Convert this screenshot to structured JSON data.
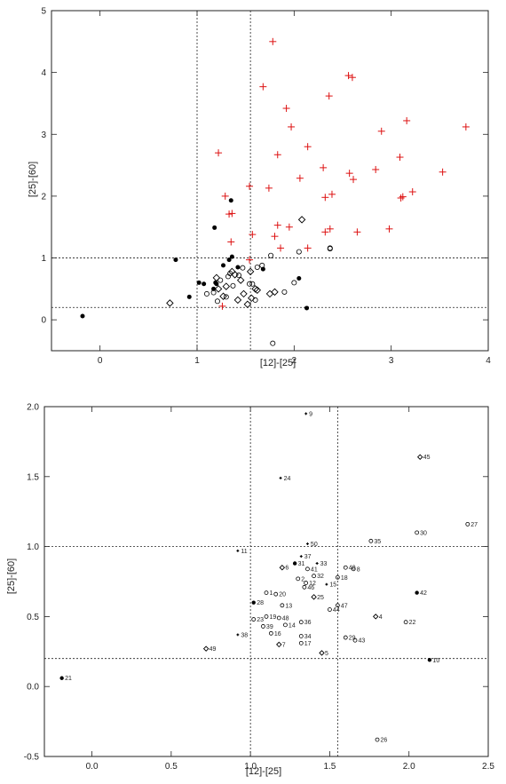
{
  "chart_data": [
    {
      "type": "scatter",
      "title": "",
      "xlabel": "[12]-[25]",
      "ylabel": "[25]-[60]",
      "xlim": [
        -0.5,
        4
      ],
      "ylim": [
        -0.5,
        5
      ],
      "x_ticks": [
        "0",
        "1",
        "2",
        "3",
        "4"
      ],
      "x_tick_values": [
        0,
        1,
        2,
        3,
        4
      ],
      "y_ticks": [
        "0",
        "1",
        "2",
        "3",
        "4",
        "5"
      ],
      "y_tick_values": [
        0,
        1,
        2,
        3,
        4,
        5
      ],
      "ref_lines": {
        "x": [
          1.0,
          1.55
        ],
        "y": [
          0.2,
          1.0
        ]
      },
      "colors": {
        "red": "#dd1111",
        "black": "#000000"
      },
      "series": [
        {
          "marker": "plus-red",
          "points": [
            [
              1.78,
              4.5
            ],
            [
              2.56,
              3.95
            ],
            [
              2.6,
              3.92
            ],
            [
              1.68,
              3.77
            ],
            [
              2.36,
              3.62
            ],
            [
              1.92,
              3.42
            ],
            [
              1.97,
              3.12
            ],
            [
              3.16,
              3.22
            ],
            [
              3.77,
              3.12
            ],
            [
              2.9,
              3.05
            ],
            [
              1.22,
              2.7
            ],
            [
              1.83,
              2.67
            ],
            [
              3.09,
              2.63
            ],
            [
              2.14,
              2.8
            ],
            [
              2.3,
              2.46
            ],
            [
              2.84,
              2.43
            ],
            [
              3.53,
              2.39
            ],
            [
              2.57,
              2.37
            ],
            [
              2.61,
              2.27
            ],
            [
              2.06,
              2.29
            ],
            [
              1.54,
              2.16
            ],
            [
              1.74,
              2.13
            ],
            [
              3.22,
              2.07
            ],
            [
              3.12,
              1.99
            ],
            [
              3.1,
              1.97
            ],
            [
              2.39,
              2.03
            ],
            [
              2.32,
              1.98
            ],
            [
              1.29,
              2.0
            ],
            [
              1.36,
              1.72
            ],
            [
              1.33,
              1.71
            ],
            [
              1.83,
              1.53
            ],
            [
              1.95,
              1.5
            ],
            [
              2.37,
              1.47
            ],
            [
              2.98,
              1.47
            ],
            [
              1.57,
              1.38
            ],
            [
              1.8,
              1.35
            ],
            [
              2.65,
              1.42
            ],
            [
              2.32,
              1.42
            ],
            [
              1.35,
              1.26
            ],
            [
              1.86,
              1.16
            ],
            [
              2.14,
              1.16
            ],
            [
              1.54,
              0.97
            ],
            [
              1.26,
              0.22
            ]
          ]
        },
        {
          "marker": "dot-black",
          "points": [
            [
              -0.18,
              0.06
            ],
            [
              0.78,
              0.97
            ],
            [
              0.92,
              0.37
            ],
            [
              1.02,
              0.6
            ],
            [
              1.07,
              0.58
            ],
            [
              1.17,
              0.5
            ],
            [
              1.19,
              0.6
            ],
            [
              1.2,
              0.58
            ],
            [
              1.27,
              0.88
            ],
            [
              1.35,
              1.93
            ],
            [
              1.18,
              1.49
            ],
            [
              1.33,
              0.97
            ],
            [
              1.36,
              1.02
            ],
            [
              1.42,
              0.85
            ],
            [
              1.68,
              0.82
            ],
            [
              2.05,
              0.67
            ],
            [
              2.13,
              0.19
            ]
          ]
        },
        {
          "marker": "diamond-open",
          "points": [
            [
              0.72,
              0.27
            ],
            [
              1.2,
              0.68
            ],
            [
              1.22,
              0.5
            ],
            [
              1.27,
              0.38
            ],
            [
              1.3,
              0.54
            ],
            [
              1.36,
              0.78
            ],
            [
              1.39,
              0.73
            ],
            [
              1.42,
              0.32
            ],
            [
              1.45,
              0.64
            ],
            [
              1.48,
              0.42
            ],
            [
              1.52,
              0.25
            ],
            [
              1.55,
              0.78
            ],
            [
              1.56,
              0.35
            ],
            [
              1.6,
              0.5
            ],
            [
              1.62,
              0.48
            ],
            [
              1.75,
              0.42
            ],
            [
              1.8,
              0.45
            ],
            [
              2.08,
              1.62
            ]
          ]
        },
        {
          "marker": "circle-open",
          "points": [
            [
              1.1,
              0.42
            ],
            [
              1.17,
              0.44
            ],
            [
              1.21,
              0.3
            ],
            [
              1.24,
              0.64
            ],
            [
              1.3,
              0.37
            ],
            [
              1.32,
              0.7
            ],
            [
              1.34,
              0.75
            ],
            [
              1.37,
              0.55
            ],
            [
              1.43,
              0.72
            ],
            [
              1.47,
              0.84
            ],
            [
              1.54,
              0.58
            ],
            [
              1.57,
              0.58
            ],
            [
              1.6,
              0.32
            ],
            [
              1.62,
              0.85
            ],
            [
              1.67,
              0.88
            ],
            [
              1.76,
              1.04
            ],
            [
              1.9,
              0.45
            ],
            [
              2.0,
              0.6
            ],
            [
              2.05,
              1.1
            ],
            [
              2.37,
              1.16
            ],
            [
              2.37,
              1.15
            ],
            [
              1.78,
              -0.38
            ]
          ]
        }
      ]
    },
    {
      "type": "scatter",
      "title": "",
      "xlabel": "[12]-[25]",
      "ylabel": "[25]-[60]",
      "xlim": [
        -0.3,
        2.5
      ],
      "ylim": [
        -0.5,
        2.0
      ],
      "x_ticks": [
        "0.0",
        "0.5",
        "1.0",
        "1.5",
        "2.0",
        "2.5"
      ],
      "x_tick_values": [
        0,
        0.5,
        1.0,
        1.5,
        2.0,
        2.5
      ],
      "y_ticks": [
        "-0.5",
        "0.0",
        "0.5",
        "1.0",
        "1.5",
        "2.0"
      ],
      "y_tick_values": [
        -0.5,
        0,
        0.5,
        1.0,
        1.5,
        2.0
      ],
      "ref_lines": {
        "x": [
          1.0,
          1.55
        ],
        "y": [
          0.2,
          1.0
        ]
      },
      "points": [
        {
          "id": "1",
          "x": 1.1,
          "y": 0.67,
          "m": "o"
        },
        {
          "id": "2",
          "x": 1.3,
          "y": 0.77,
          "m": "o"
        },
        {
          "id": "4",
          "x": 1.79,
          "y": 0.5,
          "m": "d"
        },
        {
          "id": "5",
          "x": 1.45,
          "y": 0.24,
          "m": "d"
        },
        {
          "id": "6",
          "x": 1.2,
          "y": 0.85,
          "m": "d"
        },
        {
          "id": "7",
          "x": 1.18,
          "y": 0.3,
          "m": "d"
        },
        {
          "id": "8",
          "x": 1.65,
          "y": 0.84,
          "m": "o"
        },
        {
          "id": "9",
          "x": 1.35,
          "y": 1.95,
          "m": "p"
        },
        {
          "id": "10",
          "x": 2.13,
          "y": 0.19,
          "m": "f"
        },
        {
          "id": "11",
          "x": 0.92,
          "y": 0.97,
          "m": "p"
        },
        {
          "id": "12",
          "x": 1.35,
          "y": 0.74,
          "m": "o"
        },
        {
          "id": "13",
          "x": 1.2,
          "y": 0.58,
          "m": "o"
        },
        {
          "id": "14",
          "x": 1.22,
          "y": 0.44,
          "m": "o"
        },
        {
          "id": "15",
          "x": 1.48,
          "y": 0.73,
          "m": "p"
        },
        {
          "id": "16",
          "x": 1.13,
          "y": 0.38,
          "m": "o"
        },
        {
          "id": "17",
          "x": 1.32,
          "y": 0.31,
          "m": "o"
        },
        {
          "id": "18",
          "x": 1.55,
          "y": 0.78,
          "m": "o"
        },
        {
          "id": "19",
          "x": 1.1,
          "y": 0.5,
          "m": "o"
        },
        {
          "id": "20",
          "x": 1.16,
          "y": 0.66,
          "m": "o"
        },
        {
          "id": "21",
          "x": -0.19,
          "y": 0.06,
          "m": "f"
        },
        {
          "id": "22",
          "x": 1.98,
          "y": 0.46,
          "m": "o"
        },
        {
          "id": "23",
          "x": 1.02,
          "y": 0.48,
          "m": "o"
        },
        {
          "id": "24",
          "x": 1.19,
          "y": 1.49,
          "m": "p"
        },
        {
          "id": "25",
          "x": 1.4,
          "y": 0.64,
          "m": "d"
        },
        {
          "id": "26",
          "x": 1.8,
          "y": -0.38,
          "m": "o"
        },
        {
          "id": "27",
          "x": 2.37,
          "y": 1.16,
          "m": "o"
        },
        {
          "id": "28",
          "x": 1.02,
          "y": 0.6,
          "m": "f"
        },
        {
          "id": "29",
          "x": 1.6,
          "y": 0.35,
          "m": "o"
        },
        {
          "id": "30",
          "x": 2.05,
          "y": 1.1,
          "m": "o"
        },
        {
          "id": "31",
          "x": 1.28,
          "y": 0.88,
          "m": "f"
        },
        {
          "id": "32",
          "x": 1.4,
          "y": 0.79,
          "m": "o"
        },
        {
          "id": "33",
          "x": 1.42,
          "y": 0.88,
          "m": "p"
        },
        {
          "id": "34",
          "x": 1.32,
          "y": 0.36,
          "m": "o"
        },
        {
          "id": "35",
          "x": 1.76,
          "y": 1.04,
          "m": "o"
        },
        {
          "id": "36",
          "x": 1.32,
          "y": 0.46,
          "m": "o"
        },
        {
          "id": "37",
          "x": 1.32,
          "y": 0.93,
          "m": "p"
        },
        {
          "id": "38",
          "x": 0.92,
          "y": 0.37,
          "m": "p"
        },
        {
          "id": "39",
          "x": 1.08,
          "y": 0.43,
          "m": "o"
        },
        {
          "id": "40",
          "x": 1.6,
          "y": 0.85,
          "m": "o"
        },
        {
          "id": "41",
          "x": 1.36,
          "y": 0.84,
          "m": "o"
        },
        {
          "id": "42",
          "x": 2.05,
          "y": 0.67,
          "m": "f"
        },
        {
          "id": "43",
          "x": 1.66,
          "y": 0.33,
          "m": "o"
        },
        {
          "id": "44",
          "x": 1.5,
          "y": 0.55,
          "m": "o"
        },
        {
          "id": "45",
          "x": 2.07,
          "y": 1.64,
          "m": "d"
        },
        {
          "id": "46",
          "x": 1.34,
          "y": 0.71,
          "m": "o"
        },
        {
          "id": "47",
          "x": 1.55,
          "y": 0.58,
          "m": "o"
        },
        {
          "id": "48",
          "x": 1.18,
          "y": 0.49,
          "m": "o"
        },
        {
          "id": "49",
          "x": 0.72,
          "y": 0.27,
          "m": "d"
        },
        {
          "id": "50",
          "x": 1.36,
          "y": 1.02,
          "m": "p"
        }
      ]
    }
  ]
}
